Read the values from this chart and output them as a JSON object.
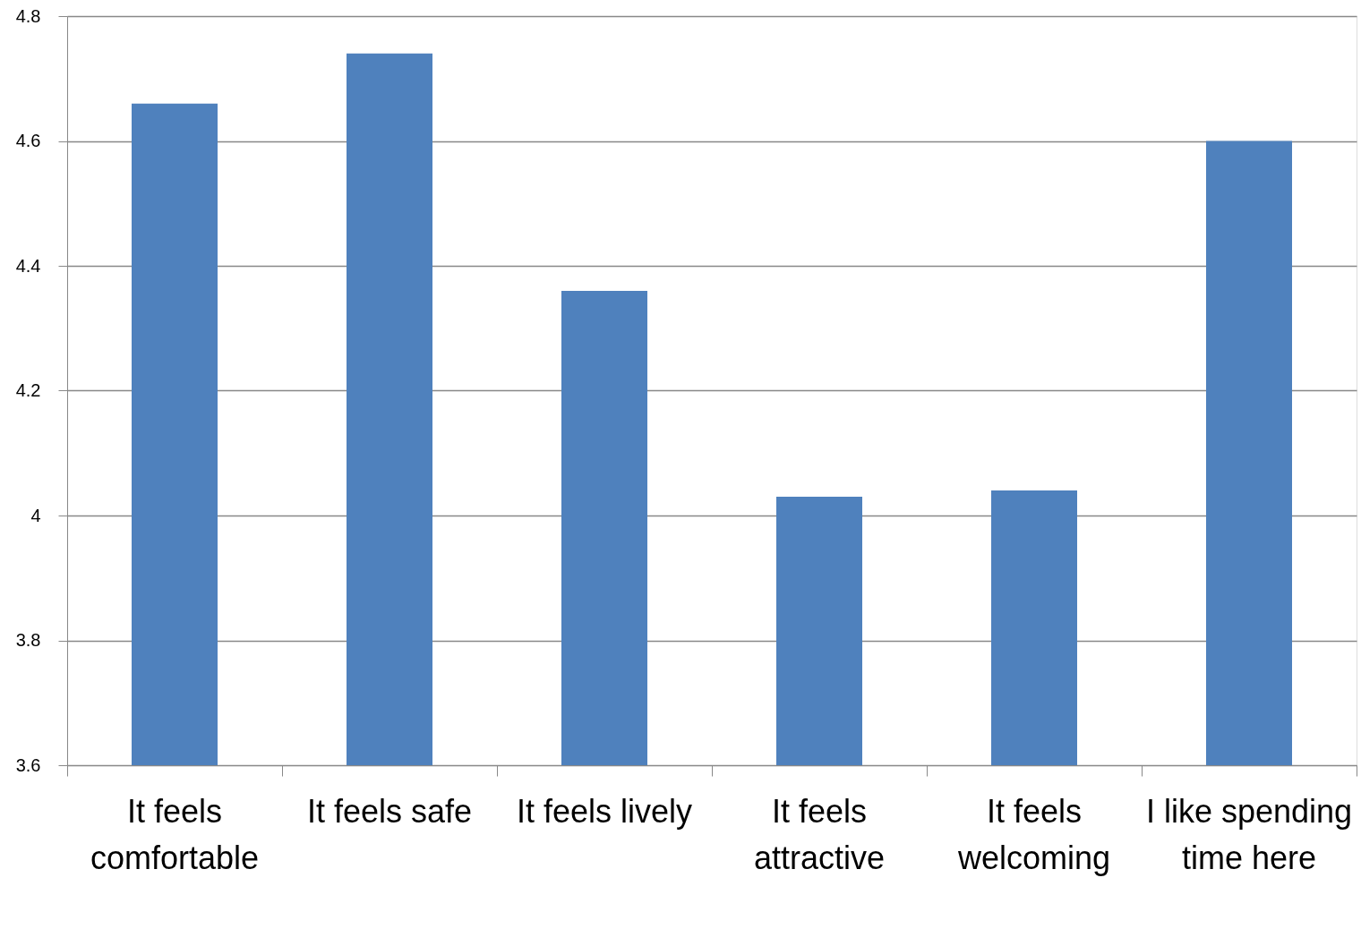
{
  "chart_data": {
    "type": "bar",
    "categories": [
      "It feels comfortable",
      "It feels safe",
      "It feels lively",
      "It feels attractive",
      "It feels welcoming",
      "I like spending time here"
    ],
    "values": [
      4.66,
      4.74,
      4.36,
      4.03,
      4.04,
      4.6
    ],
    "color": "#4f81bd",
    "ylim": [
      3.6,
      4.8
    ],
    "yticks": [
      3.6,
      3.8,
      4,
      4.2,
      4.4,
      4.6,
      4.8
    ],
    "grid": "y"
  }
}
